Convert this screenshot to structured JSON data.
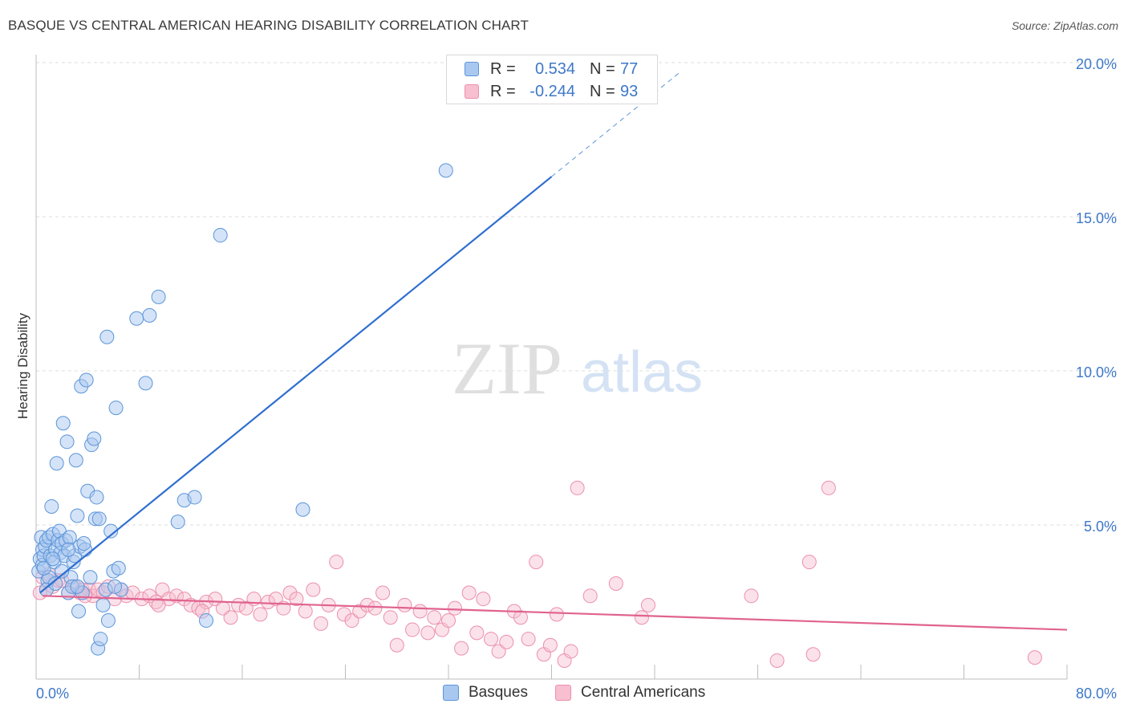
{
  "title": "BASQUE VS CENTRAL AMERICAN HEARING DISABILITY CORRELATION CHART",
  "source": "Source: ZipAtlas.com",
  "watermark": {
    "zip": "ZIP",
    "atlas": "atlas"
  },
  "legend": {
    "series1": {
      "r_label": "R =",
      "r_value": "0.534",
      "n_label": "N =",
      "n_value": "77"
    },
    "series2": {
      "r_label": "R =",
      "r_value": "-0.244",
      "n_label": "N =",
      "n_value": "93"
    }
  },
  "bottom_legend": {
    "series1": "Basques",
    "series2": "Central Americans"
  },
  "colors": {
    "blue_fill": "#a9c8f0",
    "blue_stroke": "#5b95d9",
    "blue_line": "#2f6fcf",
    "pink_fill": "#f7bfd0",
    "pink_stroke": "#ec8fac",
    "pink_line": "#e0638f",
    "axis_text": "#3d78c9",
    "grid": "#dcdcdc"
  },
  "chart_data": {
    "type": "scatter",
    "title": "BASQUE VS CENTRAL AMERICAN HEARING DISABILITY CORRELATION CHART",
    "xlabel": "",
    "ylabel": "Hearing Disability",
    "xlim": [
      0,
      80
    ],
    "ylim": [
      0,
      20
    ],
    "x_tick_labels": [
      "0.0%",
      "80.0%"
    ],
    "y_ticks": [
      5,
      10,
      15,
      20
    ],
    "y_tick_labels": [
      "5.0%",
      "10.0%",
      "15.0%",
      "20.0%"
    ],
    "grid": true,
    "legend_position": "top-center",
    "series": [
      {
        "name": "Basques",
        "r": 0.534,
        "n": 77,
        "trend": {
          "x0": 0.3,
          "y0": 2.8,
          "x1": 40.0,
          "y1": 16.3,
          "dash_to_x": 50.0
        },
        "points": [
          [
            0.2,
            3.5
          ],
          [
            0.3,
            3.9
          ],
          [
            0.4,
            4.6
          ],
          [
            0.5,
            4.2
          ],
          [
            0.5,
            3.7
          ],
          [
            0.6,
            4.0
          ],
          [
            0.7,
            4.3
          ],
          [
            0.8,
            4.5
          ],
          [
            0.9,
            3.2
          ],
          [
            1.0,
            4.6
          ],
          [
            1.1,
            4.0
          ],
          [
            1.2,
            5.6
          ],
          [
            1.3,
            4.7
          ],
          [
            1.4,
            3.8
          ],
          [
            1.5,
            4.2
          ],
          [
            1.6,
            7.0
          ],
          [
            1.7,
            4.5
          ],
          [
            1.8,
            4.8
          ],
          [
            1.9,
            4.1
          ],
          [
            2.0,
            4.4
          ],
          [
            2.1,
            8.3
          ],
          [
            2.2,
            4.0
          ],
          [
            2.3,
            4.5
          ],
          [
            2.4,
            7.7
          ],
          [
            2.5,
            2.8
          ],
          [
            2.6,
            4.6
          ],
          [
            2.7,
            3.3
          ],
          [
            2.8,
            3.0
          ],
          [
            2.9,
            3.8
          ],
          [
            3.0,
            4.0
          ],
          [
            3.1,
            7.1
          ],
          [
            3.2,
            5.3
          ],
          [
            3.3,
            2.2
          ],
          [
            3.4,
            4.3
          ],
          [
            3.5,
            9.5
          ],
          [
            3.6,
            2.8
          ],
          [
            3.8,
            4.2
          ],
          [
            3.9,
            9.7
          ],
          [
            4.0,
            6.1
          ],
          [
            4.3,
            7.6
          ],
          [
            4.5,
            7.8
          ],
          [
            4.6,
            5.2
          ],
          [
            4.7,
            5.9
          ],
          [
            4.8,
            1.0
          ],
          [
            4.9,
            5.2
          ],
          [
            5.0,
            1.3
          ],
          [
            5.4,
            2.9
          ],
          [
            5.5,
            11.1
          ],
          [
            5.6,
            1.9
          ],
          [
            5.8,
            4.8
          ],
          [
            6.0,
            3.5
          ],
          [
            6.2,
            8.8
          ],
          [
            6.4,
            3.6
          ],
          [
            6.6,
            2.9
          ],
          [
            7.8,
            11.7
          ],
          [
            8.5,
            9.6
          ],
          [
            8.8,
            11.8
          ],
          [
            9.5,
            12.4
          ],
          [
            11.0,
            5.1
          ],
          [
            11.5,
            5.8
          ],
          [
            12.3,
            5.9
          ],
          [
            13.2,
            1.9
          ],
          [
            14.3,
            14.4
          ],
          [
            20.7,
            5.5
          ],
          [
            31.8,
            16.5
          ],
          [
            3.2,
            3.0
          ],
          [
            2.0,
            3.5
          ],
          [
            1.0,
            3.3
          ],
          [
            0.8,
            2.9
          ],
          [
            2.5,
            4.2
          ],
          [
            3.7,
            4.4
          ],
          [
            1.5,
            3.1
          ],
          [
            4.2,
            3.3
          ],
          [
            6.1,
            3.0
          ],
          [
            5.2,
            2.4
          ],
          [
            0.6,
            3.6
          ],
          [
            1.3,
            3.9
          ]
        ]
      },
      {
        "name": "Central Americans",
        "r": -0.244,
        "n": 93,
        "trend": {
          "x0": 0.5,
          "y0": 2.7,
          "x1": 80.0,
          "y1": 1.6
        },
        "points": [
          [
            0.5,
            3.3
          ],
          [
            0.8,
            2.9
          ],
          [
            1.0,
            3.4
          ],
          [
            1.3,
            3.0
          ],
          [
            1.7,
            3.2
          ],
          [
            2.0,
            3.2
          ],
          [
            2.5,
            2.8
          ],
          [
            3.0,
            3.0
          ],
          [
            3.4,
            2.8
          ],
          [
            3.6,
            2.9
          ],
          [
            4.1,
            2.9
          ],
          [
            4.4,
            2.7
          ],
          [
            4.8,
            2.9
          ],
          [
            5.2,
            2.8
          ],
          [
            5.6,
            3.0
          ],
          [
            6.1,
            2.6
          ],
          [
            6.6,
            2.9
          ],
          [
            7.0,
            2.7
          ],
          [
            7.5,
            2.8
          ],
          [
            8.2,
            2.6
          ],
          [
            8.8,
            2.7
          ],
          [
            9.3,
            2.5
          ],
          [
            9.8,
            2.9
          ],
          [
            10.3,
            2.6
          ],
          [
            10.9,
            2.7
          ],
          [
            11.5,
            2.6
          ],
          [
            12.0,
            2.4
          ],
          [
            12.6,
            2.3
          ],
          [
            13.2,
            2.5
          ],
          [
            13.9,
            2.6
          ],
          [
            14.5,
            2.3
          ],
          [
            15.1,
            2.0
          ],
          [
            15.7,
            2.4
          ],
          [
            16.3,
            2.3
          ],
          [
            16.9,
            2.6
          ],
          [
            17.4,
            2.1
          ],
          [
            18.0,
            2.5
          ],
          [
            18.6,
            2.6
          ],
          [
            19.2,
            2.3
          ],
          [
            19.7,
            2.8
          ],
          [
            20.2,
            2.6
          ],
          [
            20.9,
            2.2
          ],
          [
            21.5,
            2.9
          ],
          [
            22.1,
            1.8
          ],
          [
            22.7,
            2.4
          ],
          [
            23.3,
            3.8
          ],
          [
            23.9,
            2.1
          ],
          [
            24.5,
            1.9
          ],
          [
            25.1,
            2.2
          ],
          [
            25.7,
            2.4
          ],
          [
            26.3,
            2.3
          ],
          [
            26.9,
            2.8
          ],
          [
            27.5,
            2.0
          ],
          [
            28.0,
            1.1
          ],
          [
            28.6,
            2.4
          ],
          [
            29.2,
            1.6
          ],
          [
            29.8,
            2.2
          ],
          [
            30.4,
            1.5
          ],
          [
            30.9,
            2.0
          ],
          [
            31.5,
            1.6
          ],
          [
            32.0,
            1.9
          ],
          [
            32.5,
            2.3
          ],
          [
            33.0,
            1.0
          ],
          [
            33.6,
            2.8
          ],
          [
            34.2,
            1.5
          ],
          [
            34.7,
            2.6
          ],
          [
            35.3,
            1.3
          ],
          [
            35.9,
            0.9
          ],
          [
            36.5,
            1.2
          ],
          [
            37.1,
            2.2
          ],
          [
            37.6,
            2.0
          ],
          [
            38.2,
            1.3
          ],
          [
            38.8,
            3.8
          ],
          [
            39.4,
            0.8
          ],
          [
            39.9,
            1.1
          ],
          [
            40.4,
            2.1
          ],
          [
            41.0,
            0.6
          ],
          [
            41.5,
            0.9
          ],
          [
            42.0,
            6.2
          ],
          [
            43.0,
            2.7
          ],
          [
            45.0,
            3.1
          ],
          [
            47.0,
            2.0
          ],
          [
            47.5,
            2.4
          ],
          [
            55.5,
            2.7
          ],
          [
            57.5,
            0.6
          ],
          [
            60.0,
            3.8
          ],
          [
            60.3,
            0.8
          ],
          [
            61.5,
            6.2
          ],
          [
            77.5,
            0.7
          ],
          [
            0.3,
            2.8
          ],
          [
            3.8,
            2.7
          ],
          [
            9.5,
            2.4
          ],
          [
            12.9,
            2.2
          ]
        ]
      }
    ]
  }
}
